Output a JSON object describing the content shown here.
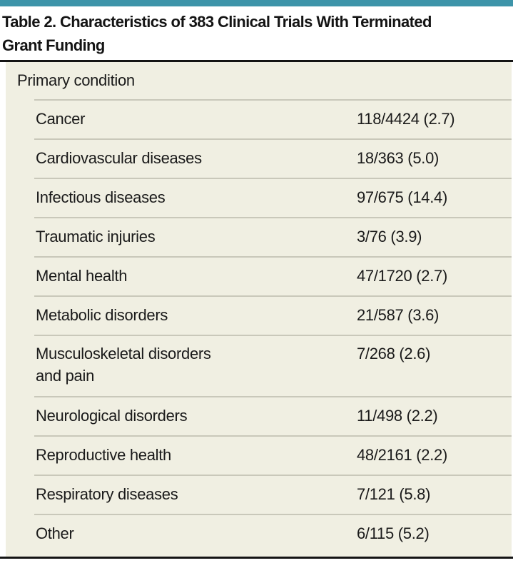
{
  "title": {
    "line1": "Table 2. Characteristics of 383 Clinical Trials With Terminated",
    "line2": "Grant Funding"
  },
  "table": {
    "section_header": "Primary condition",
    "rows": [
      {
        "label": "Cancer",
        "value": "118/4424 (2.7)"
      },
      {
        "label": "Cardiovascular diseases",
        "value": "18/363 (5.0)"
      },
      {
        "label": "Infectious diseases",
        "value": "97/675 (14.4)"
      },
      {
        "label": "Traumatic injuries",
        "value": "3/76 (3.9)"
      },
      {
        "label": "Mental health",
        "value": "47/1720 (2.7)"
      },
      {
        "label": "Metabolic disorders",
        "value": "21/587 (3.6)"
      },
      {
        "label": "Musculoskeletal disorders\nand pain",
        "value": "7/268 (2.6)"
      },
      {
        "label": "Neurological disorders",
        "value": "11/498 (2.2)"
      },
      {
        "label": "Reproductive health",
        "value": "48/2161 (2.2)"
      },
      {
        "label": "Respiratory diseases",
        "value": "7/121 (5.8)"
      },
      {
        "label": "Other",
        "value": "6/115 (5.2)"
      }
    ]
  },
  "colors": {
    "accent_teal": "#3d94a9",
    "body_background": "#f0efe2",
    "divider": "#c9c8ba",
    "rule": "#141414"
  }
}
